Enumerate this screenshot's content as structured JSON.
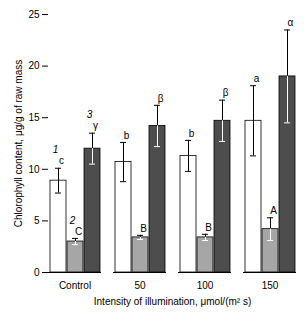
{
  "chart_data": {
    "type": "bar",
    "categories": [
      "Control",
      "50",
      "100",
      "150"
    ],
    "xlabel": "Intensity of illumination, μmol/(m² s)",
    "ylabel": "Chlorophyll content, μg/g of raw mass",
    "ylim": [
      0,
      25
    ],
    "yticks": [
      0,
      5,
      10,
      15,
      20,
      25
    ],
    "series": [
      {
        "name": "1",
        "color": "#ffffff",
        "values": [
          8.9,
          10.7,
          11.3,
          14.7
        ],
        "errors": [
          1.2,
          1.9,
          1.5,
          3.4
        ],
        "annotations": [
          "c",
          "b",
          "b",
          "a"
        ]
      },
      {
        "name": "2",
        "color": "#a6a6a6",
        "values": [
          3.0,
          3.4,
          3.4,
          4.2
        ],
        "errors": [
          0.3,
          0.2,
          0.3,
          1.1
        ],
        "annotations": [
          "C",
          "B",
          "B",
          "A"
        ]
      },
      {
        "name": "3",
        "color": "#4d4d4d",
        "values": [
          12.0,
          14.2,
          14.7,
          19.0
        ],
        "errors": [
          1.5,
          2.0,
          2.0,
          4.5
        ],
        "annotations": [
          "γ",
          "β",
          "β",
          "α"
        ]
      }
    ]
  }
}
